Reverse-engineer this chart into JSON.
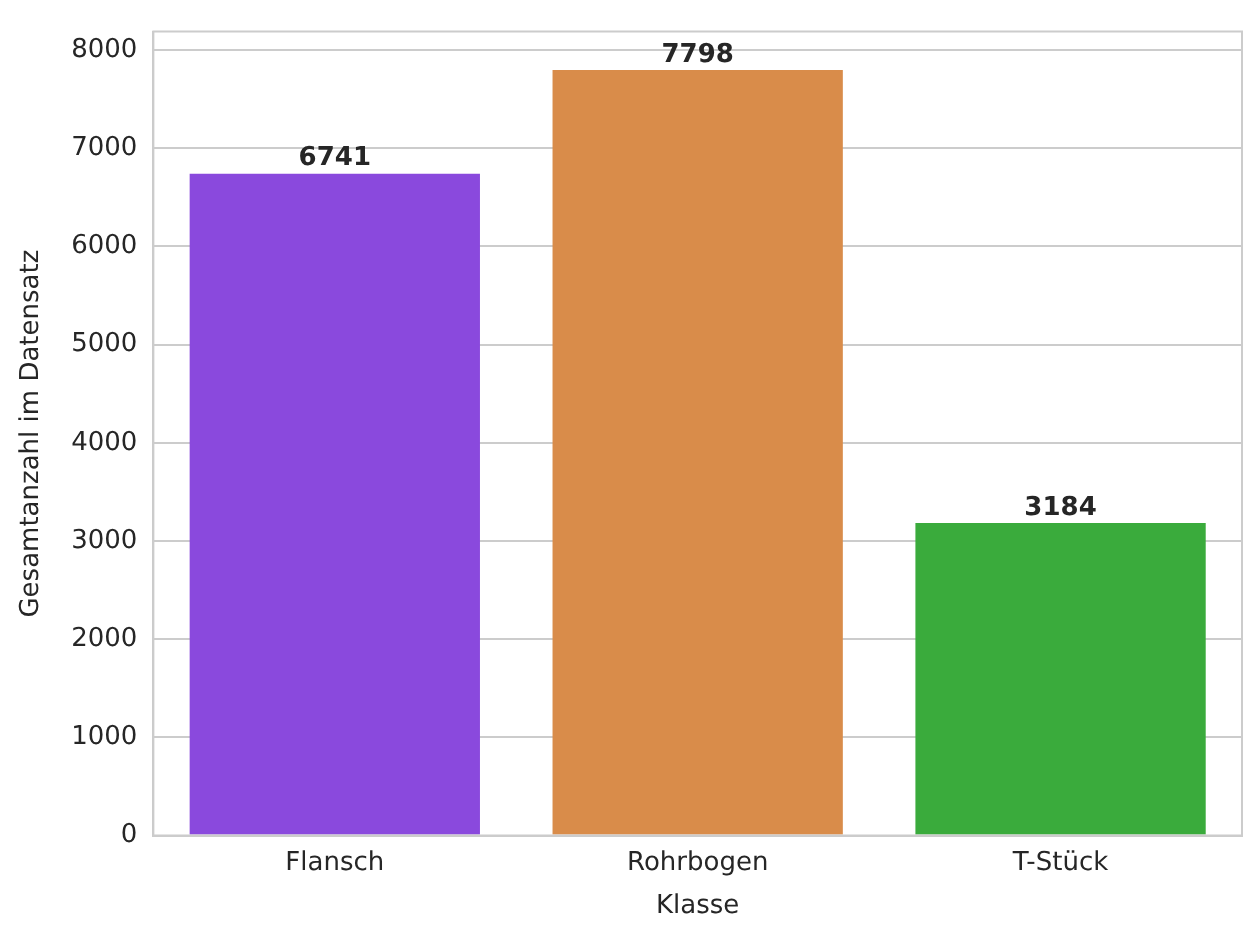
{
  "chart_data": {
    "type": "bar",
    "xlabel": "Klasse",
    "ylabel": "Gesamtanzahl im Datensatz",
    "categories": [
      "Flansch",
      "Rohrbogen",
      "T-Stück"
    ],
    "values": [
      6741,
      7798,
      3184
    ],
    "colors": [
      "#8a49dd",
      "#d98c4a",
      "#3aab3c"
    ],
    "ylim": [
      0,
      8188
    ],
    "yticks": [
      0,
      1000,
      2000,
      3000,
      4000,
      5000,
      6000,
      7000,
      8000
    ],
    "grid": "y",
    "data_labels": true,
    "legend": false
  }
}
